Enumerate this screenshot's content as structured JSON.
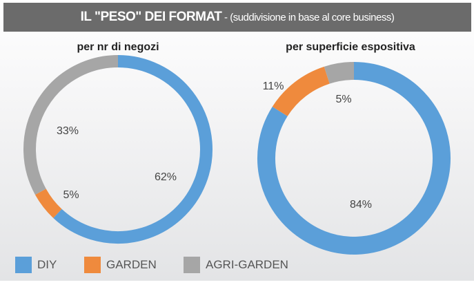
{
  "title": {
    "main": "IL \"PESO\" DEI FORMAT",
    "sub": " - (suddivisione in base al core business)"
  },
  "colors": {
    "DIY": "#5b9fd9",
    "GARDEN": "#ef8a3d",
    "AGRI-GARDEN": "#a6a6a6"
  },
  "chart_data": [
    {
      "type": "pie",
      "title": "per nr di negozi",
      "categories": [
        "DIY",
        "GARDEN",
        "AGRI-GARDEN"
      ],
      "values": [
        62,
        5,
        33
      ],
      "labels": [
        "62%",
        "5%",
        "33%"
      ]
    },
    {
      "type": "pie",
      "title": "per superficie espositiva",
      "categories": [
        "DIY",
        "GARDEN",
        "AGRI-GARDEN"
      ],
      "values": [
        84,
        11,
        5
      ],
      "labels": [
        "84%",
        "11%",
        "5%"
      ]
    }
  ],
  "legend": [
    "DIY",
    "GARDEN",
    "AGRI-GARDEN"
  ]
}
